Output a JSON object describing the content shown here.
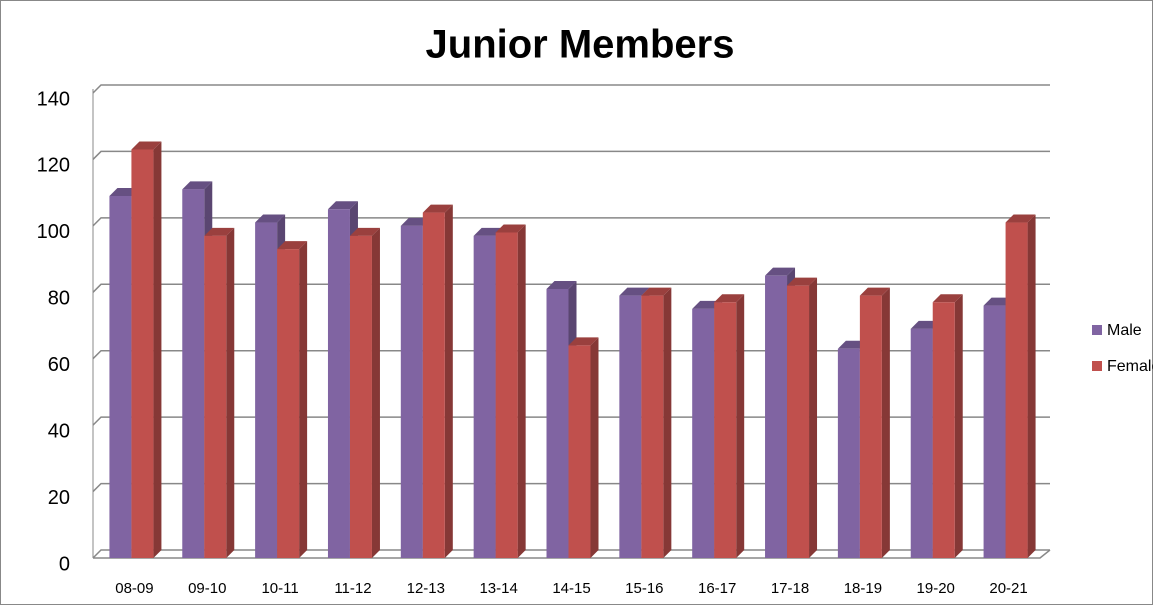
{
  "chart_data": {
    "type": "bar",
    "title": "Junior Members",
    "categories": [
      "08-09",
      "09-10",
      "10-11",
      "11-12",
      "12-13",
      "13-14",
      "14-15",
      "15-16",
      "16-17",
      "17-18",
      "18-19",
      "19-20",
      "20-21"
    ],
    "series": [
      {
        "name": "Male",
        "color": "#8064a2",
        "values": [
          109,
          111,
          101,
          105,
          100,
          97,
          81,
          79,
          75,
          85,
          63,
          69,
          76
        ]
      },
      {
        "name": "Female",
        "color": "#c0504d",
        "values": [
          123,
          97,
          93,
          97,
          104,
          98,
          64,
          79,
          77,
          82,
          79,
          77,
          101
        ]
      }
    ],
    "ylim": [
      0,
      140
    ],
    "yticks": [
      0,
      20,
      40,
      60,
      80,
      100,
      120,
      140
    ],
    "grid": true,
    "legend": "right"
  }
}
